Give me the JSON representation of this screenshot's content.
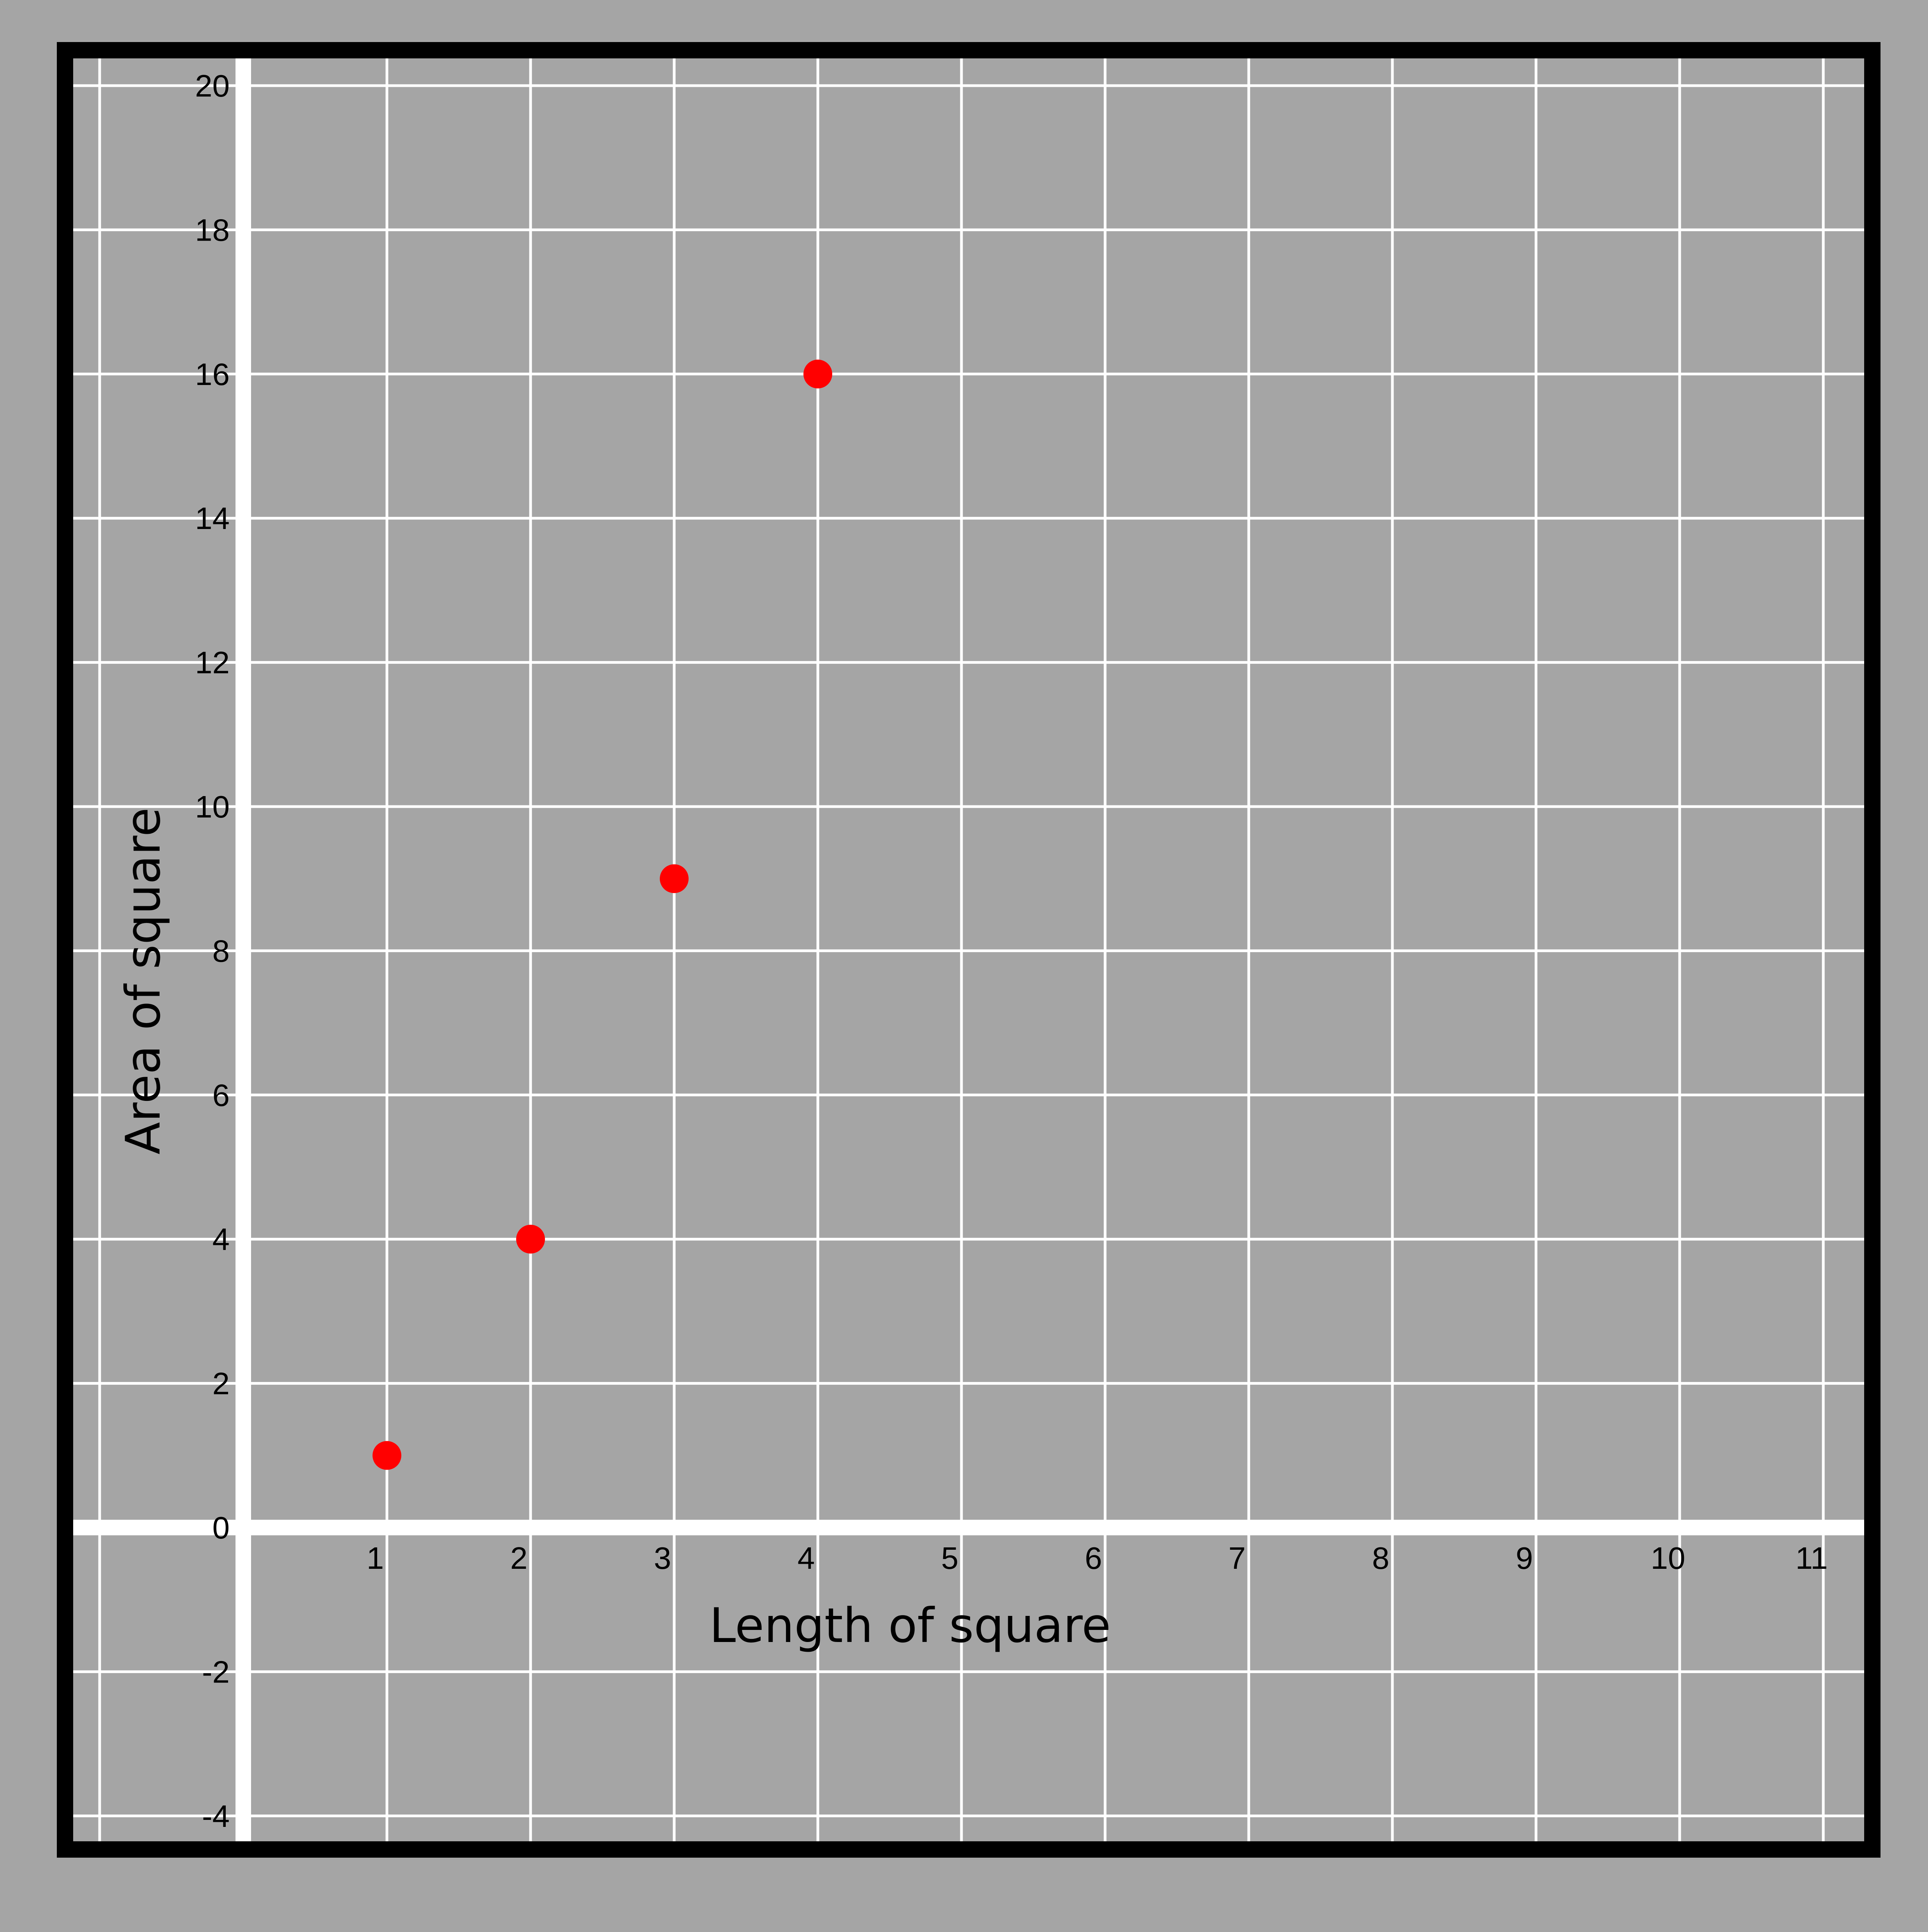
{
  "chart_data": {
    "type": "scatter",
    "title": "",
    "xlabel": "Length of square",
    "ylabel": "Area of square",
    "xlim": [
      -1,
      11.3
    ],
    "ylim": [
      -4.5,
      20.5
    ],
    "x_ticks": [
      1,
      2,
      3,
      4,
      5,
      6,
      7,
      8,
      9,
      10,
      11
    ],
    "y_ticks": [
      -4,
      -2,
      0,
      2,
      4,
      6,
      8,
      10,
      12,
      14,
      16,
      18,
      20
    ],
    "grid": true,
    "legend": "none",
    "series": [
      {
        "x": [
          1,
          2,
          3,
          4
        ],
        "y": [
          1,
          4,
          9,
          16
        ]
      }
    ],
    "colors": {
      "background": "#a5a5a5",
      "grid": "#ffffff",
      "axes": "#ffffff",
      "frame": "#000000",
      "points": "#ff0000"
    }
  }
}
